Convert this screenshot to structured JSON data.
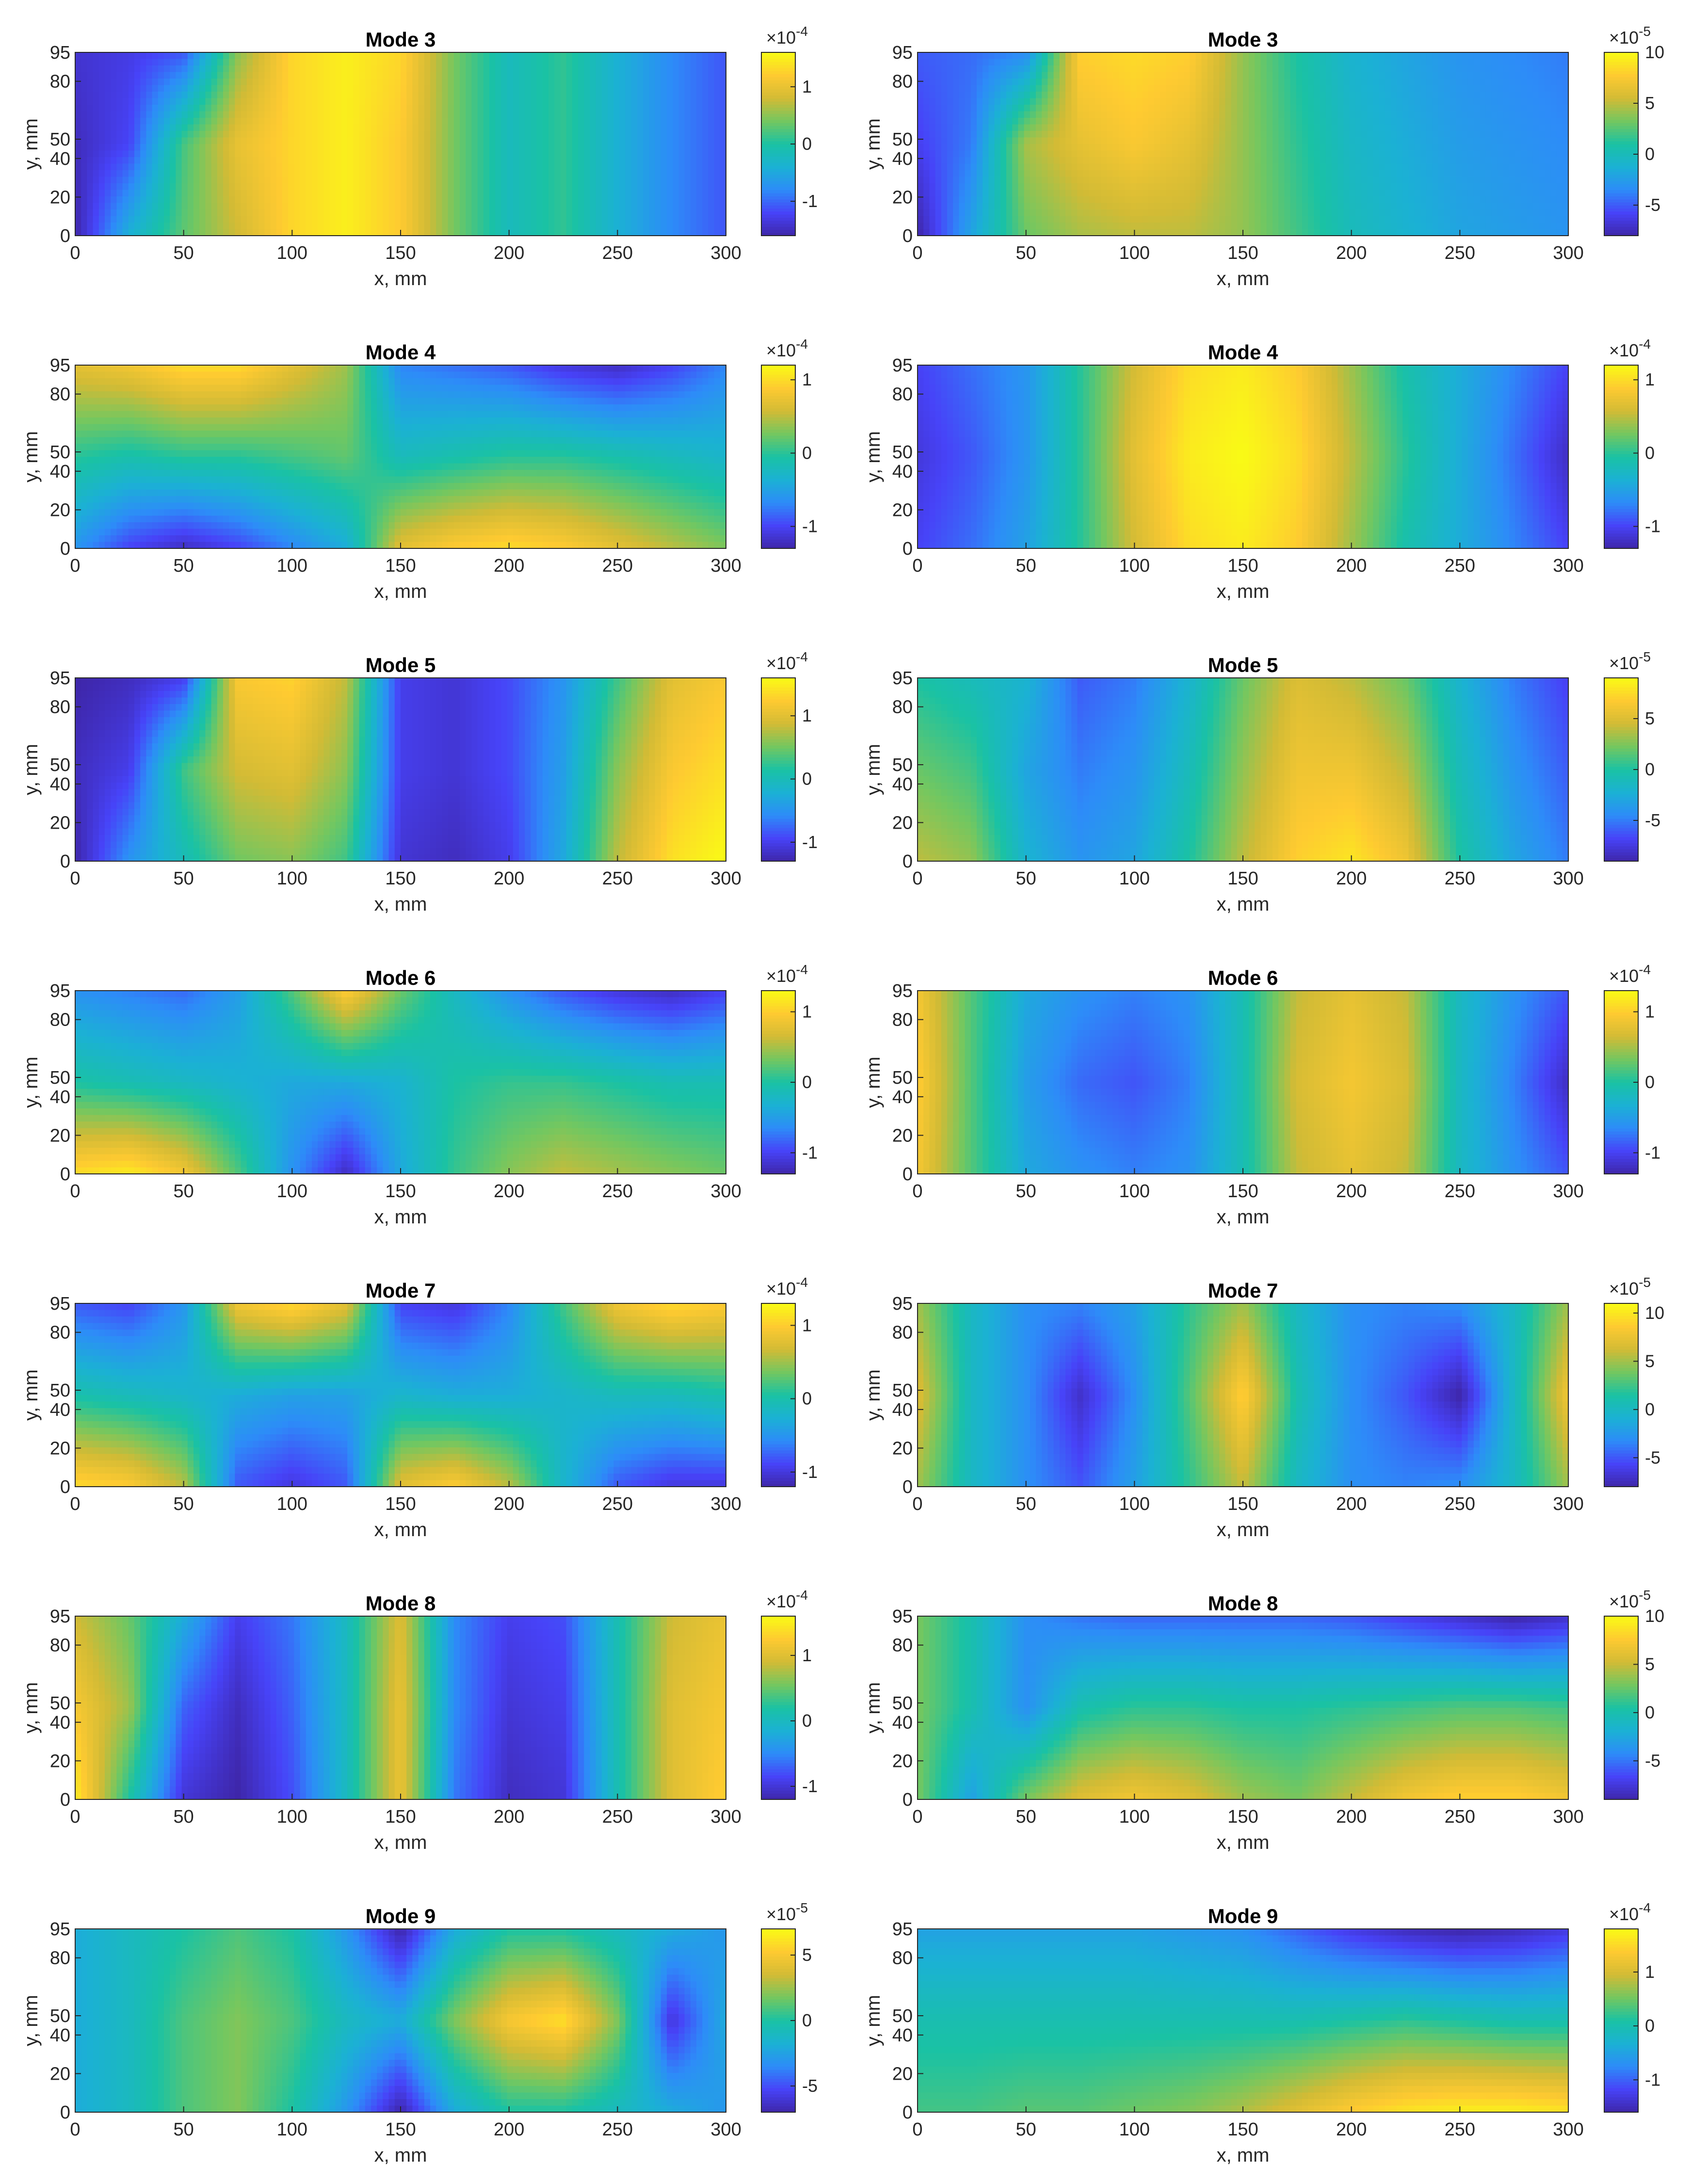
{
  "colormap": [
    "#3e26a8",
    "#4743f8",
    "#2d8cf8",
    "#1bb1d4",
    "#1ac2a4",
    "#73c760",
    "#d2bb35",
    "#feca31",
    "#f9fb15"
  ],
  "chart_data": [
    {
      "type": "heatmap",
      "title": "Mode 3",
      "xlabel": "x, mm",
      "ylabel": "y, mm",
      "xlim": [
        0,
        300
      ],
      "ylim": [
        0,
        95
      ],
      "xticks": [
        "0",
        "50",
        "100",
        "150",
        "200",
        "250",
        "300"
      ],
      "yticks": [
        "0",
        "20",
        "40",
        "50",
        "80",
        "95"
      ],
      "colorbar": {
        "exponent": "-4",
        "ticks": [
          "1",
          "0",
          "-1"
        ],
        "tick_values": [
          1,
          0,
          -1
        ],
        "range": [
          -1.6,
          1.6
        ]
      },
      "values": [
        [
          -1.4,
          -1.3,
          -1.1,
          0.5,
          1.3,
          1.5,
          1.3,
          0.4,
          -0.2,
          0.1,
          -0.4,
          -0.8,
          -1.1
        ],
        [
          -1.5,
          -1.2,
          0.2,
          1.0,
          1.3,
          1.5,
          1.2,
          0.4,
          -0.2,
          0.1,
          -0.4,
          -0.8,
          -1.1
        ],
        [
          -1.6,
          -0.4,
          0.3,
          0.8,
          1.3,
          1.5,
          1.2,
          0.4,
          -0.2,
          0.1,
          -0.4,
          -0.8,
          -1.1
        ]
      ]
    },
    {
      "type": "heatmap",
      "title": "Mode 3",
      "xlabel": "x, mm",
      "ylabel": "y, mm",
      "xlim": [
        0,
        300
      ],
      "ylim": [
        0,
        95
      ],
      "xticks": [
        "0",
        "50",
        "100",
        "150",
        "200",
        "250",
        "300"
      ],
      "yticks": [
        "0",
        "20",
        "40",
        "50",
        "80",
        "95"
      ],
      "colorbar": {
        "exponent": "-5",
        "ticks": [
          "10",
          "5",
          "0",
          "-5"
        ],
        "tick_values": [
          10,
          5,
          0,
          -5
        ],
        "range": [
          -8,
          10
        ]
      },
      "values": [
        [
          -5.0,
          -4.5,
          -3.5,
          8.0,
          8.5,
          8.0,
          4.0,
          1.0,
          -1.0,
          -2.0,
          -3.0,
          -3.5,
          -4.0
        ],
        [
          -6.0,
          -4.0,
          4.5,
          6.5,
          7.5,
          6.5,
          4.0,
          1.5,
          -0.5,
          -1.5,
          -2.5,
          -3.0,
          -3.5
        ],
        [
          -8.0,
          -2.0,
          3.0,
          4.5,
          5.0,
          5.0,
          4.0,
          2.0,
          0.0,
          -1.0,
          -2.0,
          -2.5,
          -3.0
        ]
      ]
    },
    {
      "type": "heatmap",
      "title": "Mode 4",
      "xlabel": "x, mm",
      "ylabel": "y, mm",
      "xlim": [
        0,
        300
      ],
      "ylim": [
        0,
        95
      ],
      "xticks": [
        "0",
        "50",
        "100",
        "150",
        "200",
        "250",
        "300"
      ],
      "yticks": [
        "0",
        "20",
        "40",
        "50",
        "80",
        "95"
      ],
      "colorbar": {
        "exponent": "-4",
        "ticks": [
          "1",
          "0",
          "-1"
        ],
        "tick_values": [
          1,
          0,
          -1
        ],
        "range": [
          -1.3,
          1.2
        ]
      },
      "values": [
        [
          0.7,
          0.8,
          1.0,
          1.0,
          0.7,
          0.4,
          -0.7,
          -0.8,
          -0.9,
          -1.1,
          -1.2,
          -1.0,
          -0.7
        ],
        [
          0.0,
          -0.1,
          0.0,
          0.0,
          0.1,
          0.2,
          -0.2,
          -0.1,
          0.0,
          0.0,
          -0.1,
          -0.2,
          -0.3
        ],
        [
          -0.6,
          -1.0,
          -1.2,
          -1.0,
          -0.7,
          -0.4,
          0.7,
          0.9,
          1.0,
          0.9,
          0.7,
          0.5,
          0.3
        ]
      ]
    },
    {
      "type": "heatmap",
      "title": "Mode 4",
      "xlabel": "x, mm",
      "ylabel": "y, mm",
      "xlim": [
        0,
        300
      ],
      "ylim": [
        0,
        95
      ],
      "xticks": [
        "0",
        "50",
        "100",
        "150",
        "200",
        "250",
        "300"
      ],
      "yticks": [
        "0",
        "20",
        "40",
        "50",
        "80",
        "95"
      ],
      "colorbar": {
        "exponent": "-4",
        "ticks": [
          "1",
          "0",
          "-1"
        ],
        "tick_values": [
          1,
          0,
          -1
        ],
        "range": [
          -1.3,
          1.2
        ]
      },
      "values": [
        [
          -1.0,
          -0.8,
          -0.6,
          0.0,
          0.6,
          1.0,
          1.1,
          0.9,
          0.4,
          -0.1,
          -0.4,
          -0.7,
          -1.0
        ],
        [
          -1.1,
          -0.9,
          -0.6,
          0.0,
          0.7,
          1.1,
          1.2,
          1.0,
          0.5,
          0.0,
          -0.4,
          -0.8,
          -1.2
        ],
        [
          -1.0,
          -0.8,
          -0.5,
          0.0,
          0.6,
          1.0,
          1.1,
          0.9,
          0.4,
          -0.1,
          -0.4,
          -0.7,
          -1.0
        ]
      ]
    },
    {
      "type": "heatmap",
      "title": "Mode 5",
      "xlabel": "x, mm",
      "ylabel": "y, mm",
      "xlim": [
        0,
        300
      ],
      "ylim": [
        0,
        95
      ],
      "xticks": [
        "0",
        "50",
        "100",
        "150",
        "200",
        "250",
        "300"
      ],
      "yticks": [
        "0",
        "20",
        "40",
        "50",
        "80",
        "95"
      ],
      "colorbar": {
        "exponent": "-4",
        "ticks": [
          "1",
          "0",
          "-1"
        ],
        "tick_values": [
          1,
          0,
          -1
        ],
        "range": [
          -1.3,
          1.6
        ]
      },
      "values": [
        [
          -1.3,
          -1.2,
          -1.0,
          1.2,
          1.3,
          0.8,
          -1.0,
          -1.1,
          -0.9,
          -0.5,
          0.3,
          1.0,
          1.2
        ],
        [
          -1.2,
          -1.0,
          0.3,
          0.9,
          1.0,
          0.6,
          -1.0,
          -1.1,
          -0.9,
          -0.4,
          0.6,
          1.2,
          1.4
        ],
        [
          -1.3,
          -0.5,
          0.0,
          0.5,
          0.6,
          0.3,
          -1.1,
          -1.2,
          -1.0,
          -0.3,
          0.8,
          1.4,
          1.6
        ]
      ]
    },
    {
      "type": "heatmap",
      "title": "Mode 5",
      "xlabel": "x, mm",
      "ylabel": "y, mm",
      "xlim": [
        0,
        300
      ],
      "ylim": [
        0,
        95
      ],
      "xticks": [
        "0",
        "50",
        "100",
        "150",
        "200",
        "250",
        "300"
      ],
      "yticks": [
        "0",
        "20",
        "40",
        "50",
        "80",
        "95"
      ],
      "colorbar": {
        "exponent": "-5",
        "ticks": [
          "5",
          "0",
          "-5"
        ],
        "tick_values": [
          5,
          0,
          -5
        ],
        "range": [
          -9,
          9
        ]
      },
      "values": [
        [
          0.0,
          -1.0,
          -2.0,
          -6.0,
          -5.0,
          -2.0,
          2.0,
          5.0,
          4.0,
          2.0,
          -2.0,
          -5.0,
          -7.0
        ],
        [
          2.0,
          1.0,
          -3.0,
          -5.0,
          -4.0,
          -1.0,
          3.0,
          6.0,
          6.0,
          4.0,
          -1.0,
          -4.0,
          -6.0
        ],
        [
          4.0,
          3.0,
          -2.0,
          -4.0,
          -3.0,
          0.0,
          4.0,
          7.0,
          8.0,
          6.0,
          0.0,
          -3.0,
          -5.0
        ]
      ]
    },
    {
      "type": "heatmap",
      "title": "Mode 6",
      "xlabel": "x, mm",
      "ylabel": "y, mm",
      "xlim": [
        0,
        300
      ],
      "ylim": [
        0,
        95
      ],
      "xticks": [
        "0",
        "50",
        "100",
        "150",
        "200",
        "250",
        "300"
      ],
      "yticks": [
        "0",
        "20",
        "40",
        "50",
        "80",
        "95"
      ],
      "colorbar": {
        "exponent": "-4",
        "ticks": [
          "1",
          "0",
          "-1"
        ],
        "tick_values": [
          1,
          0,
          -1
        ],
        "range": [
          -1.3,
          1.3
        ]
      },
      "values": [
        [
          -0.6,
          -0.7,
          -0.8,
          -0.5,
          0.2,
          1.0,
          0.3,
          -0.2,
          -0.6,
          -0.9,
          -1.1,
          -1.2,
          -1.0
        ],
        [
          0.0,
          -0.1,
          -0.2,
          -0.3,
          -0.4,
          -0.4,
          -0.3,
          0.0,
          0.1,
          0.1,
          0.0,
          -0.1,
          -0.1
        ],
        [
          1.1,
          1.2,
          0.9,
          0.2,
          -0.6,
          -1.2,
          -0.4,
          0.1,
          0.4,
          0.6,
          0.5,
          0.4,
          0.3
        ]
      ]
    },
    {
      "type": "heatmap",
      "title": "Mode 6",
      "xlabel": "x, mm",
      "ylabel": "y, mm",
      "xlim": [
        0,
        300
      ],
      "ylim": [
        0,
        95
      ],
      "xticks": [
        "0",
        "50",
        "100",
        "150",
        "200",
        "250",
        "300"
      ],
      "yticks": [
        "0",
        "20",
        "40",
        "50",
        "80",
        "95"
      ],
      "colorbar": {
        "exponent": "-4",
        "ticks": [
          "1",
          "0",
          "-1"
        ],
        "tick_values": [
          1,
          0,
          -1
        ],
        "range": [
          -1.3,
          1.3
        ]
      },
      "values": [
        [
          0.9,
          0.2,
          -0.4,
          -0.6,
          -0.7,
          -0.6,
          -0.1,
          0.6,
          0.8,
          0.6,
          -0.2,
          -0.6,
          -0.9
        ],
        [
          1.0,
          0.2,
          -0.5,
          -0.8,
          -0.9,
          -0.7,
          -0.1,
          0.7,
          0.9,
          0.7,
          -0.2,
          -0.7,
          -1.2
        ],
        [
          0.9,
          0.2,
          -0.4,
          -0.6,
          -0.7,
          -0.6,
          -0.1,
          0.6,
          0.8,
          0.6,
          -0.2,
          -0.6,
          -0.9
        ]
      ]
    },
    {
      "type": "heatmap",
      "title": "Mode 7",
      "xlabel": "x, mm",
      "ylabel": "y, mm",
      "xlim": [
        0,
        300
      ],
      "ylim": [
        0,
        95
      ],
      "xticks": [
        "0",
        "50",
        "100",
        "150",
        "200",
        "250",
        "300"
      ],
      "yticks": [
        "0",
        "20",
        "40",
        "50",
        "80",
        "95"
      ],
      "colorbar": {
        "exponent": "-4",
        "ticks": [
          "1",
          "0",
          "-1"
        ],
        "tick_values": [
          1,
          0,
          -1
        ],
        "range": [
          -1.2,
          1.3
        ]
      },
      "values": [
        [
          -0.8,
          -0.9,
          -0.5,
          0.9,
          1.1,
          0.8,
          -0.9,
          -1.0,
          -0.6,
          0.2,
          0.9,
          1.1,
          1.0
        ],
        [
          0.0,
          -0.1,
          -0.2,
          -0.3,
          -0.4,
          -0.4,
          -0.2,
          -0.3,
          -0.3,
          -0.2,
          -0.1,
          -0.1,
          0.0
        ],
        [
          1.1,
          1.0,
          0.6,
          -0.8,
          -1.0,
          -0.8,
          0.8,
          1.0,
          0.6,
          -0.2,
          -0.8,
          -1.0,
          -1.0
        ]
      ]
    },
    {
      "type": "heatmap",
      "title": "Mode 7",
      "xlabel": "x, mm",
      "ylabel": "y, mm",
      "xlim": [
        0,
        300
      ],
      "ylim": [
        0,
        95
      ],
      "xticks": [
        "0",
        "50",
        "100",
        "150",
        "200",
        "250",
        "300"
      ],
      "yticks": [
        "0",
        "20",
        "40",
        "50",
        "80",
        "95"
      ],
      "colorbar": {
        "exponent": "-5",
        "ticks": [
          "10",
          "5",
          "0",
          "-5"
        ],
        "tick_values": [
          10,
          5,
          0,
          -5
        ],
        "range": [
          -8,
          11
        ]
      },
      "values": [
        [
          5.0,
          0.0,
          -3.0,
          -3.5,
          -2.0,
          2.0,
          5.0,
          0.0,
          -3.0,
          -3.5,
          -3.0,
          0.0,
          5.0
        ],
        [
          7.0,
          0.0,
          -3.0,
          -7.0,
          -3.0,
          3.0,
          9.0,
          1.0,
          -3.0,
          -5.0,
          -8.0,
          0.0,
          8.0
        ],
        [
          5.0,
          0.0,
          -3.0,
          -5.0,
          -2.0,
          2.0,
          6.0,
          0.0,
          -3.0,
          -3.5,
          -3.0,
          0.0,
          5.0
        ]
      ]
    },
    {
      "type": "heatmap",
      "title": "Mode 8",
      "xlabel": "x, mm",
      "ylabel": "y, mm",
      "xlim": [
        0,
        300
      ],
      "ylim": [
        0,
        95
      ],
      "xticks": [
        "0",
        "50",
        "100",
        "150",
        "200",
        "250",
        "300"
      ],
      "yticks": [
        "0",
        "20",
        "40",
        "50",
        "80",
        "95"
      ],
      "colorbar": {
        "exponent": "-4",
        "ticks": [
          "1",
          "0",
          "-1"
        ],
        "tick_values": [
          1,
          0,
          -1
        ],
        "range": [
          -1.2,
          1.6
        ]
      },
      "values": [
        [
          0.9,
          0.5,
          -0.2,
          -0.9,
          -0.6,
          0.0,
          1.0,
          -0.5,
          -0.9,
          -0.8,
          0.1,
          0.9,
          1.1
        ],
        [
          1.2,
          0.7,
          -0.7,
          -1.1,
          -0.7,
          0.0,
          1.1,
          -0.5,
          -1.0,
          -0.9,
          0.1,
          1.0,
          1.2
        ],
        [
          1.5,
          0.2,
          -1.0,
          -1.2,
          -0.8,
          0.0,
          1.1,
          -0.6,
          -1.1,
          -1.0,
          0.1,
          1.0,
          1.3
        ]
      ]
    },
    {
      "type": "heatmap",
      "title": "Mode 8",
      "xlabel": "x, mm",
      "ylabel": "y, mm",
      "xlim": [
        0,
        300
      ],
      "ylim": [
        0,
        95
      ],
      "xticks": [
        "0",
        "50",
        "100",
        "150",
        "200",
        "250",
        "300"
      ],
      "yticks": [
        "0",
        "20",
        "40",
        "50",
        "80",
        "95"
      ],
      "colorbar": {
        "exponent": "-5",
        "ticks": [
          "10",
          "5",
          "0",
          "-5"
        ],
        "tick_values": [
          10,
          5,
          0,
          -5
        ],
        "range": [
          -9,
          10
        ]
      },
      "values": [
        [
          3.0,
          0.0,
          -4.0,
          -5.0,
          -5.5,
          -5.5,
          -5.5,
          -5.5,
          -6.0,
          -7.0,
          -8.0,
          -9.0,
          -8.0
        ],
        [
          3.0,
          0.0,
          -4.0,
          0.0,
          1.0,
          1.0,
          0.5,
          0.5,
          1.0,
          1.5,
          2.0,
          2.0,
          1.5
        ],
        [
          3.0,
          -3.0,
          3.0,
          6.0,
          7.0,
          6.0,
          4.0,
          3.0,
          5.0,
          7.0,
          8.0,
          8.0,
          7.0
        ]
      ]
    },
    {
      "type": "heatmap",
      "title": "Mode 9",
      "xlabel": "x, mm",
      "ylabel": "y, mm",
      "xlim": [
        0,
        300
      ],
      "ylim": [
        0,
        95
      ],
      "xticks": [
        "0",
        "50",
        "100",
        "150",
        "200",
        "250",
        "300"
      ],
      "yticks": [
        "0",
        "20",
        "40",
        "50",
        "80",
        "95"
      ],
      "colorbar": {
        "exponent": "-5",
        "ticks": [
          "5",
          "0",
          "-5"
        ],
        "tick_values": [
          5,
          0,
          -5
        ],
        "range": [
          -7,
          7
        ]
      },
      "values": [
        [
          -2.0,
          -1.0,
          0.0,
          1.0,
          0.0,
          -3.0,
          -7.0,
          -2.0,
          0.0,
          0.0,
          -1.0,
          -2.0,
          -3.0
        ],
        [
          -2.0,
          -1.0,
          1.0,
          2.0,
          1.0,
          -1.0,
          -2.0,
          2.0,
          5.0,
          6.0,
          2.0,
          -6.0,
          -2.0
        ],
        [
          -2.0,
          -1.0,
          1.0,
          2.0,
          0.0,
          -3.0,
          -7.0,
          -2.0,
          0.0,
          0.0,
          -1.0,
          -2.0,
          -3.0
        ]
      ]
    },
    {
      "type": "heatmap",
      "title": "Mode 9",
      "xlabel": "x, mm",
      "ylabel": "y, mm",
      "xlim": [
        0,
        300
      ],
      "ylim": [
        0,
        95
      ],
      "xticks": [
        "0",
        "50",
        "100",
        "150",
        "200",
        "250",
        "300"
      ],
      "yticks": [
        "0",
        "20",
        "40",
        "50",
        "80",
        "95"
      ],
      "colorbar": {
        "exponent": "-4",
        "ticks": [
          "1",
          "0",
          "-1"
        ],
        "tick_values": [
          1,
          0,
          -1
        ],
        "range": [
          -1.6,
          1.8
        ]
      },
      "values": [
        [
          -0.5,
          -0.5,
          -0.5,
          -0.5,
          -0.5,
          -0.6,
          -0.7,
          -1.0,
          -1.3,
          -1.5,
          -1.6,
          -1.5,
          -1.3
        ],
        [
          0.0,
          0.0,
          0.0,
          0.0,
          0.0,
          0.0,
          0.0,
          0.0,
          0.1,
          0.2,
          0.1,
          0.0,
          0.0
        ],
        [
          0.3,
          0.3,
          0.4,
          0.4,
          0.5,
          0.6,
          0.8,
          1.1,
          1.4,
          1.6,
          1.7,
          1.7,
          1.6
        ]
      ]
    }
  ]
}
